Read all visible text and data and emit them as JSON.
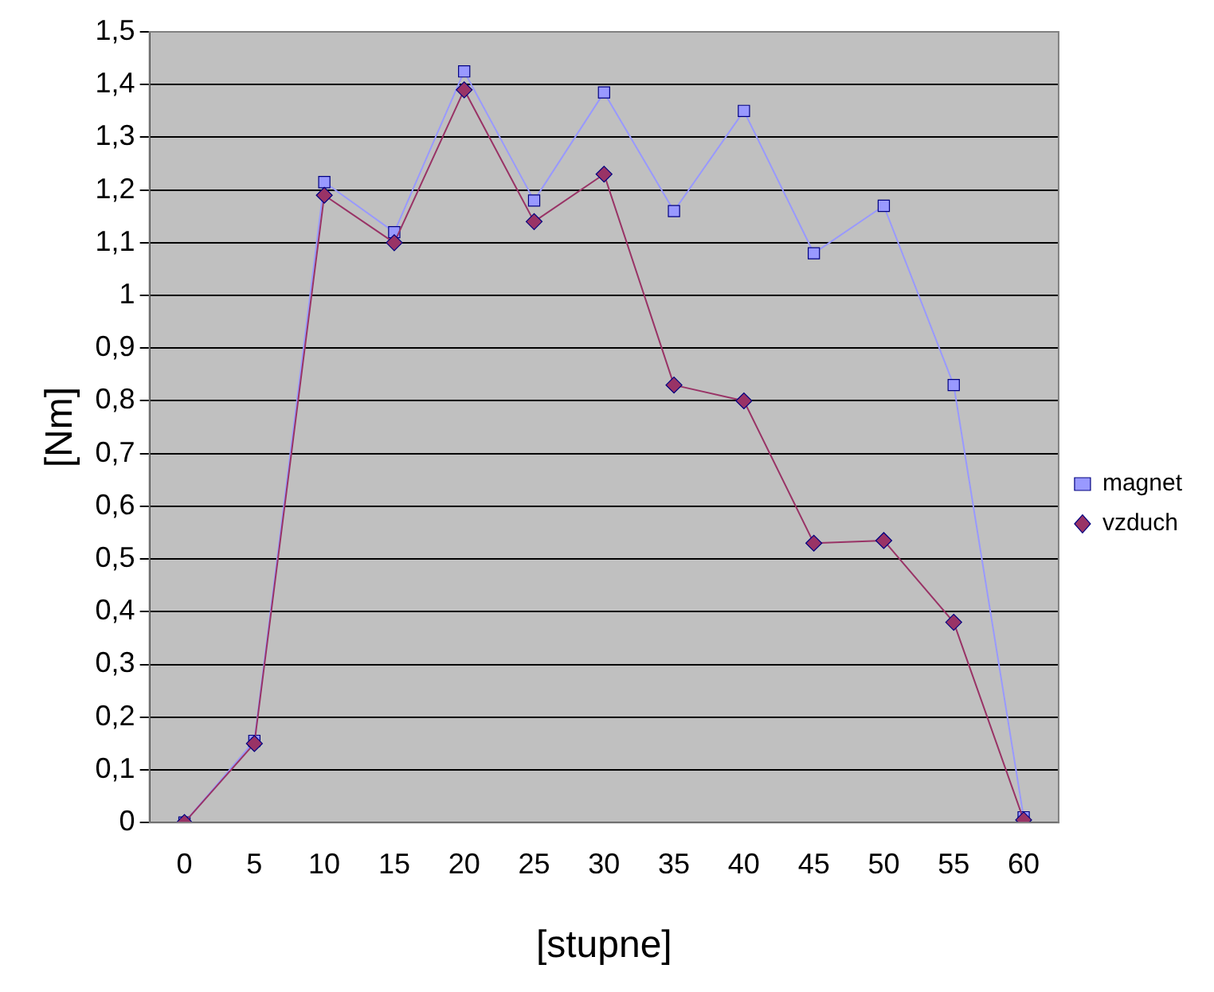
{
  "chart_data": {
    "type": "line",
    "xlabel": "[stupne]",
    "ylabel": "[Nm]",
    "categories": [
      "0",
      "5",
      "10",
      "15",
      "20",
      "25",
      "30",
      "35",
      "40",
      "45",
      "50",
      "55",
      "60"
    ],
    "series": [
      {
        "name": "magnet",
        "color": "#9999ff",
        "marker": "square",
        "values": [
          0,
          0.155,
          1.215,
          1.12,
          1.425,
          1.18,
          1.385,
          1.16,
          1.35,
          1.08,
          1.17,
          0.83,
          0.01
        ]
      },
      {
        "name": "vzduch",
        "color": "#993366",
        "marker": "diamond",
        "values": [
          0,
          0.15,
          1.19,
          1.1,
          1.39,
          1.14,
          1.23,
          0.83,
          0.8,
          0.53,
          0.535,
          0.38,
          0.005
        ]
      }
    ],
    "ylim": [
      0,
      1.5
    ],
    "yticks": [
      0,
      {
        "value": 0.1,
        "label": "0,1"
      },
      {
        "value": 0.2,
        "label": "0,2"
      },
      {
        "value": 0.3,
        "label": "0,3"
      },
      {
        "value": 0.4,
        "label": "0,4"
      },
      {
        "value": 0.5,
        "label": "0,5"
      },
      {
        "value": 0.6,
        "label": "0,6"
      },
      {
        "value": 0.7,
        "label": "0,7"
      },
      {
        "value": 0.8,
        "label": "0,8"
      },
      {
        "value": 0.9,
        "label": "0,9"
      },
      1,
      {
        "value": 1.1,
        "label": "1,1"
      },
      {
        "value": 1.2,
        "label": "1,2"
      },
      {
        "value": 1.3,
        "label": "1,3"
      },
      {
        "value": 1.4,
        "label": "1,4"
      },
      {
        "value": 1.5,
        "label": "1,5"
      }
    ],
    "grid": "y",
    "legend": "right",
    "line_style": "solid"
  }
}
